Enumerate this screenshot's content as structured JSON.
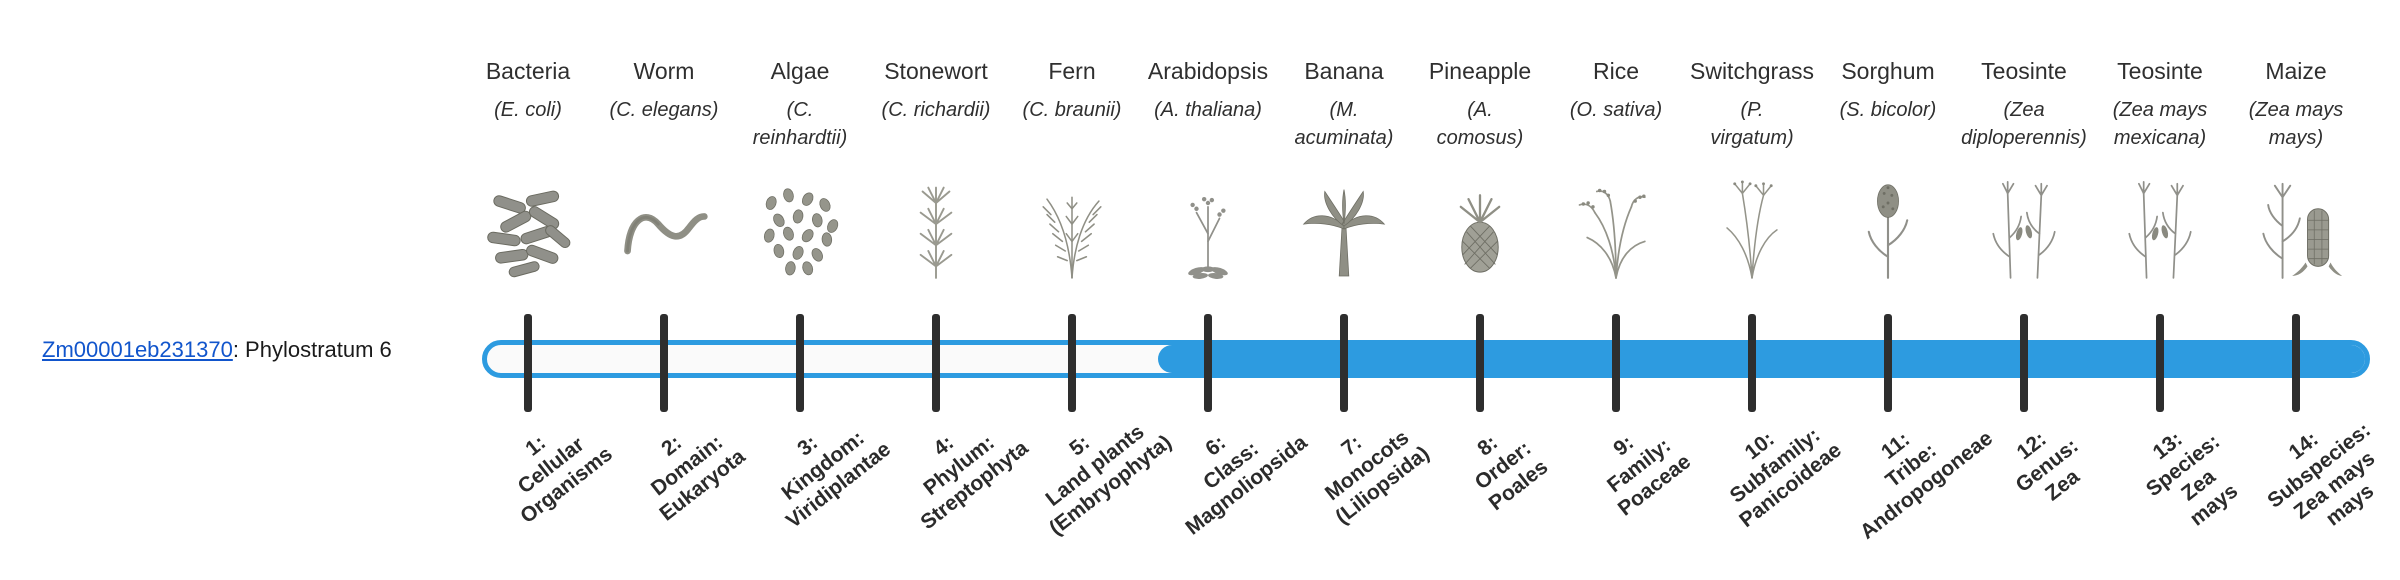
{
  "gene": {
    "id": "Zm00001eb231370",
    "suffix": ": Phylostratum 6"
  },
  "bar": {
    "origin_stratum": 6
  },
  "colors": {
    "bar_blue": "#2D9BE0",
    "tick": "#2e2e2e",
    "link": "#1155CC",
    "bar_empty": "#fafafa"
  },
  "organisms": [
    {
      "name": "Bacteria",
      "sci": "(E. coli)",
      "icon": "bacteria-icon",
      "stratum_label": "1:\nCellular\nOrganisms"
    },
    {
      "name": "Worm",
      "sci": "(C. elegans)",
      "icon": "worm-icon",
      "stratum_label": "2:\nDomain:\nEukaryota"
    },
    {
      "name": "Algae",
      "sci": "(C.\nreinhardtii)",
      "icon": "algae-icon",
      "stratum_label": "3:\nKingdom:\nViridiplantae"
    },
    {
      "name": "Stonewort",
      "sci": "(C. richardii)",
      "icon": "stonewort-icon",
      "stratum_label": "4:\nPhylum:\nStreptophyta"
    },
    {
      "name": "Fern",
      "sci": "(C. braunii)",
      "icon": "fern-icon",
      "stratum_label": "5:\nLand plants\n(Embryophyta)"
    },
    {
      "name": "Arabidopsis",
      "sci": "(A. thaliana)",
      "icon": "arabidopsis-icon",
      "stratum_label": "6:\nClass:\nMagnoliopsida"
    },
    {
      "name": "Banana",
      "sci": "(M.\nacuminata)",
      "icon": "banana-icon",
      "stratum_label": "7:\nMonocots\n(Liliopsida)"
    },
    {
      "name": "Pineapple",
      "sci": "(A.\ncomosus)",
      "icon": "pineapple-icon",
      "stratum_label": "8:\nOrder:\nPoales"
    },
    {
      "name": "Rice",
      "sci": "(O. sativa)",
      "icon": "rice-icon",
      "stratum_label": "9:\nFamily:\nPoaceae"
    },
    {
      "name": "Switchgrass",
      "sci": "(P.\nvirgatum)",
      "icon": "switchgrass-icon",
      "stratum_label": "10:\nSubfamily:\nPanicoideae"
    },
    {
      "name": "Sorghum",
      "sci": "(S. bicolor)",
      "icon": "sorghum-icon",
      "stratum_label": "11:\nTribe:\nAndropogoneae"
    },
    {
      "name": "Teosinte",
      "sci": "(Zea\ndiploperennis)",
      "icon": "teosinte-icon",
      "stratum_label": "12:\nGenus:\nZea"
    },
    {
      "name": "Teosinte",
      "sci": "(Zea mays\nmexicana)",
      "icon": "teosinte-icon",
      "stratum_label": "13:\nSpecies:\nZea\nmays"
    },
    {
      "name": "Maize",
      "sci": "(Zea mays\nmays)",
      "icon": "maize-icon",
      "stratum_label": "14:\nSubspecies:\nZea mays\nmays"
    }
  ]
}
